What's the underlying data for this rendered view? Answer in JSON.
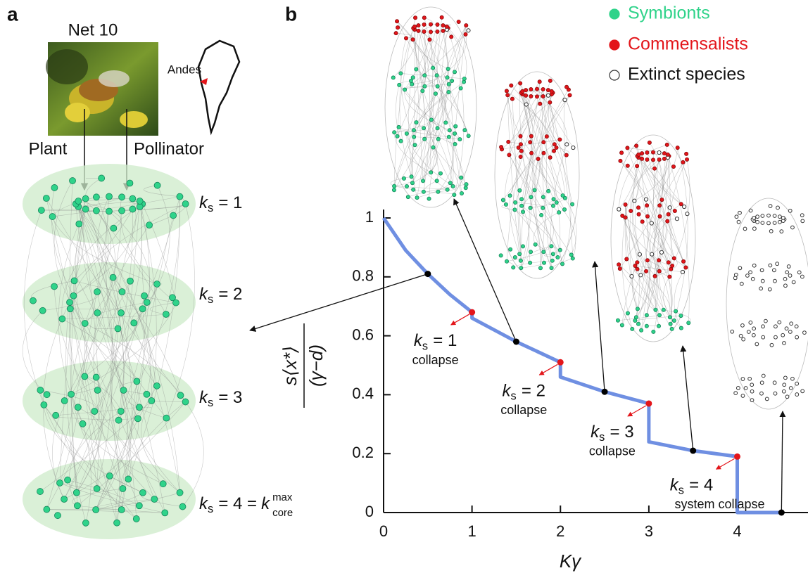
{
  "panel_a": {
    "label": "a",
    "title": "Net 10",
    "map_label": "Andes",
    "plant": "Plant",
    "pollinator": "Pollinator",
    "layers": [
      {
        "symbol": "k",
        "subscript": "s",
        "text": "= 1"
      },
      {
        "symbol": "k",
        "subscript": "s",
        "text": "= 2"
      },
      {
        "symbol": "k",
        "subscript": "s",
        "text": "= 3"
      },
      {
        "symbol": "k",
        "subscript": "s",
        "text": "= 4 =",
        "symbol2": "k",
        "superscript": "max",
        "subscript2": "core"
      }
    ]
  },
  "panel_b": {
    "label": "b",
    "legend": [
      {
        "name": "Symbionts",
        "color": "#2fd38a"
      },
      {
        "name": "Commensalists",
        "color": "#e3151a"
      },
      {
        "name": "Extinct species",
        "color": "none"
      }
    ]
  },
  "chart_data": {
    "type": "line",
    "xlabel": "Kγ",
    "ylabel_numerator": "s⟨x*⟩",
    "ylabel_denominator": "(γ−d)",
    "x": [
      0,
      0.25,
      0.5,
      0.75,
      1,
      1,
      1.5,
      2,
      2,
      2.5,
      3,
      3,
      3.5,
      4,
      4,
      4.5
    ],
    "series": [
      {
        "color": "#6f8fe2",
        "values": [
          1,
          0.89,
          0.81,
          0.74,
          0.68,
          0.66,
          0.58,
          0.51,
          0.46,
          0.41,
          0.37,
          0.24,
          0.21,
          0.19,
          0,
          0
        ]
      }
    ],
    "markers": {
      "color": "#000000",
      "x": [
        0.5,
        1.5,
        2.5,
        3.5,
        4.5
      ],
      "values": [
        0.81,
        0.58,
        0.41,
        0.21,
        0
      ]
    },
    "collapse_points": {
      "color": "#e3151a",
      "x": [
        1,
        2,
        3,
        4
      ],
      "values": [
        0.68,
        0.51,
        0.37,
        0.19
      ]
    },
    "annotations": [
      {
        "symbol": "k",
        "subscript": "s",
        "text": "= 1",
        "note": "collapse"
      },
      {
        "symbol": "k",
        "subscript": "s",
        "text": "= 2",
        "note": "collapse"
      },
      {
        "symbol": "k",
        "subscript": "s",
        "text": "= 3",
        "note": "collapse"
      },
      {
        "symbol": "k",
        "subscript": "s",
        "text": "= 4",
        "note": "system collapse"
      }
    ],
    "xlim": [
      0,
      4.8
    ],
    "ylim": [
      0,
      1
    ],
    "xticks": [
      0,
      1,
      2,
      3,
      4
    ],
    "yticks": [
      0,
      0.2,
      0.4,
      0.6,
      0.8,
      1
    ]
  }
}
